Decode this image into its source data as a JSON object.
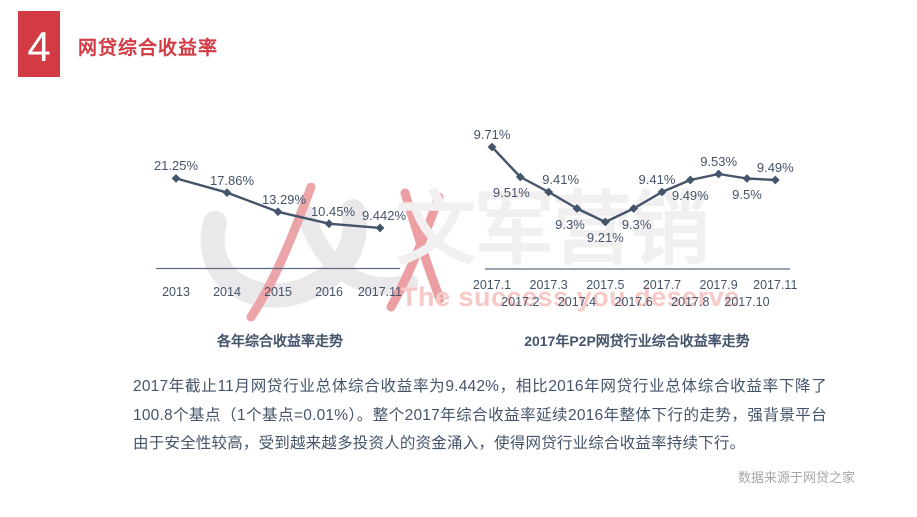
{
  "colors": {
    "accent": "#d23b43",
    "chart_line": "#44546a",
    "axis": "#5d6d80",
    "text": "#44546a",
    "muted": "#a5a5a5",
    "watermark_gray": "#f1eff0",
    "watermark_pink": "#f6c9c7"
  },
  "header": {
    "number": "4",
    "title": "网贷综合收益率"
  },
  "chart_data": [
    {
      "type": "line",
      "title": "各年综合收益率走势",
      "categories": [
        "2013",
        "2014",
        "2015",
        "2016",
        "2017.11"
      ],
      "values": [
        21.25,
        17.86,
        13.29,
        10.45,
        9.442
      ],
      "point_labels": [
        "21.25%",
        "17.86%",
        "13.29%",
        "10.45%",
        "9.442%"
      ],
      "label_side": [
        "above",
        "above",
        "above",
        "above",
        "above"
      ],
      "xlabel": "",
      "ylabel": "",
      "ylim": [
        8,
        23
      ],
      "grid": false,
      "legend": false,
      "line_color": "#44546a",
      "marker": "diamond"
    },
    {
      "type": "line",
      "title": "2017年P2P网贷行业综合收益率走势",
      "categories": [
        "2017.1",
        "2017.2",
        "2017.3",
        "2017.4",
        "2017.5",
        "2017.6",
        "2017.7",
        "2017.8",
        "2017.9",
        "2017.10",
        "2017.11"
      ],
      "values": [
        9.71,
        9.51,
        9.41,
        9.3,
        9.21,
        9.3,
        9.41,
        9.49,
        9.53,
        9.5,
        9.49
      ],
      "point_labels": [
        "9.71%",
        "9.51%",
        "9.41%",
        "9.3%",
        "9.21%",
        "9.3%",
        "9.41%",
        "9.49%",
        "9.53%",
        "9.5%",
        "9.49%"
      ],
      "label_side": [
        "above",
        "below",
        "above",
        "below",
        "below",
        "below",
        "above",
        "below",
        "above",
        "below",
        "above"
      ],
      "xlabel": "",
      "ylabel": "",
      "ylim": [
        9.0,
        9.8
      ],
      "grid": false,
      "legend": false,
      "line_color": "#44546a",
      "marker": "diamond"
    }
  ],
  "body_text": "2017年截止11月网贷行业总体综合收益率为9.442%，相比2016年网贷行业总体综合收益率下降了100.8个基点（1个基点=0.01%）。整个2017年综合收益率延续2016年整体下行的走势，强背景平台由于安全性较高，受到越来越多投资人的资金涌入，使得网贷行业综合收益率持续下行。",
  "source_note": "数据来源于网贷之家",
  "watermark": {
    "brand": "文军营销",
    "tagline": "The success you deserve"
  }
}
